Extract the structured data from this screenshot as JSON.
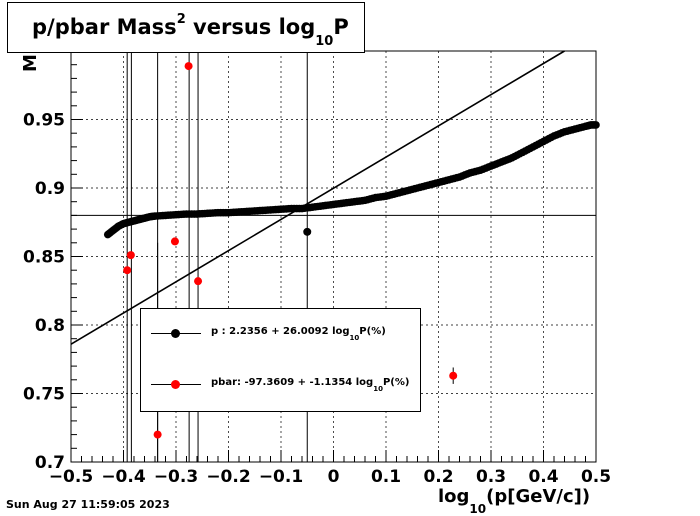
{
  "title": {
    "main": "p/pbar Mass",
    "sup": "2",
    "mid": " versus log",
    "sub": "10",
    "end": "P"
  },
  "ylabel_fragment": "M",
  "xlabel": {
    "pre": "log",
    "sub": "10",
    "post": "(p[GeV/c])"
  },
  "timestamp": "Sun Aug 27 11:59:05 2023",
  "colors": {
    "p": "#000000",
    "pbar": "#ff0000"
  },
  "legend": [
    {
      "pre": "p   : 2.2356 + 26.0092 log",
      "sub": "10",
      "post": "P(%)",
      "color": "#000000"
    },
    {
      "pre": "pbar: -97.3609 + -1.1354 log",
      "sub": "10",
      "post": "P(%)",
      "color": "#ff0000"
    }
  ],
  "chart_data": {
    "type": "scatter",
    "xlim": [
      -0.5,
      0.5
    ],
    "ylim": [
      0.7,
      1.0
    ],
    "x_ticks": [
      "−0.5",
      "−0.4",
      "−0.3",
      "−0.2",
      "−0.1",
      "0",
      "0.1",
      "0.2",
      "0.3",
      "0.4",
      "0.5"
    ],
    "y_ticks": [
      "0.7",
      "0.75",
      "0.8",
      "0.85",
      "0.9",
      "0.95"
    ],
    "grid": true,
    "hline": 0.88,
    "fit_line": [
      [
        -0.5,
        0.786
      ],
      [
        0.44,
        1.0
      ]
    ],
    "vlines": [
      -0.393,
      -0.385,
      -0.335,
      -0.275,
      -0.258,
      -0.05
    ],
    "p_curve": [
      [
        -0.43,
        0.866
      ],
      [
        -0.42,
        0.869
      ],
      [
        -0.41,
        0.872
      ],
      [
        -0.4,
        0.874
      ],
      [
        -0.39,
        0.875
      ],
      [
        -0.38,
        0.876
      ],
      [
        -0.37,
        0.877
      ],
      [
        -0.36,
        0.878
      ],
      [
        -0.35,
        0.879
      ],
      [
        -0.34,
        0.8795
      ],
      [
        -0.32,
        0.88
      ],
      [
        -0.3,
        0.8805
      ],
      [
        -0.28,
        0.881
      ],
      [
        -0.26,
        0.881
      ],
      [
        -0.24,
        0.8815
      ],
      [
        -0.22,
        0.882
      ],
      [
        -0.2,
        0.882
      ],
      [
        -0.18,
        0.8825
      ],
      [
        -0.16,
        0.883
      ],
      [
        -0.14,
        0.8835
      ],
      [
        -0.12,
        0.884
      ],
      [
        -0.1,
        0.8845
      ],
      [
        -0.08,
        0.885
      ],
      [
        -0.06,
        0.885
      ],
      [
        -0.04,
        0.886
      ],
      [
        -0.02,
        0.887
      ],
      [
        0.0,
        0.888
      ],
      [
        0.02,
        0.889
      ],
      [
        0.04,
        0.89
      ],
      [
        0.06,
        0.891
      ],
      [
        0.08,
        0.893
      ],
      [
        0.1,
        0.894
      ],
      [
        0.12,
        0.896
      ],
      [
        0.14,
        0.898
      ],
      [
        0.16,
        0.9
      ],
      [
        0.18,
        0.902
      ],
      [
        0.2,
        0.904
      ],
      [
        0.22,
        0.906
      ],
      [
        0.24,
        0.908
      ],
      [
        0.26,
        0.911
      ],
      [
        0.28,
        0.913
      ],
      [
        0.3,
        0.916
      ],
      [
        0.32,
        0.919
      ],
      [
        0.34,
        0.922
      ],
      [
        0.36,
        0.926
      ],
      [
        0.38,
        0.93
      ],
      [
        0.4,
        0.934
      ],
      [
        0.42,
        0.938
      ],
      [
        0.44,
        0.941
      ],
      [
        0.46,
        0.943
      ],
      [
        0.48,
        0.945
      ],
      [
        0.49,
        0.946
      ],
      [
        0.5,
        0.946
      ]
    ],
    "p_points": [
      {
        "x": -0.05,
        "y": 0.868,
        "err": 0.2
      }
    ],
    "pbar_points": [
      {
        "x": -0.393,
        "y": 0.84,
        "err": 0.0
      },
      {
        "x": -0.386,
        "y": 0.851,
        "err": 0.0
      },
      {
        "x": -0.335,
        "y": 0.72,
        "err": 0.14
      },
      {
        "x": -0.302,
        "y": 0.861,
        "err": 0.0
      },
      {
        "x": -0.276,
        "y": 0.989,
        "err": 0.0
      },
      {
        "x": -0.258,
        "y": 0.832,
        "err": 0.0
      },
      {
        "x": 0.228,
        "y": 0.763,
        "err": 0.006
      }
    ]
  }
}
